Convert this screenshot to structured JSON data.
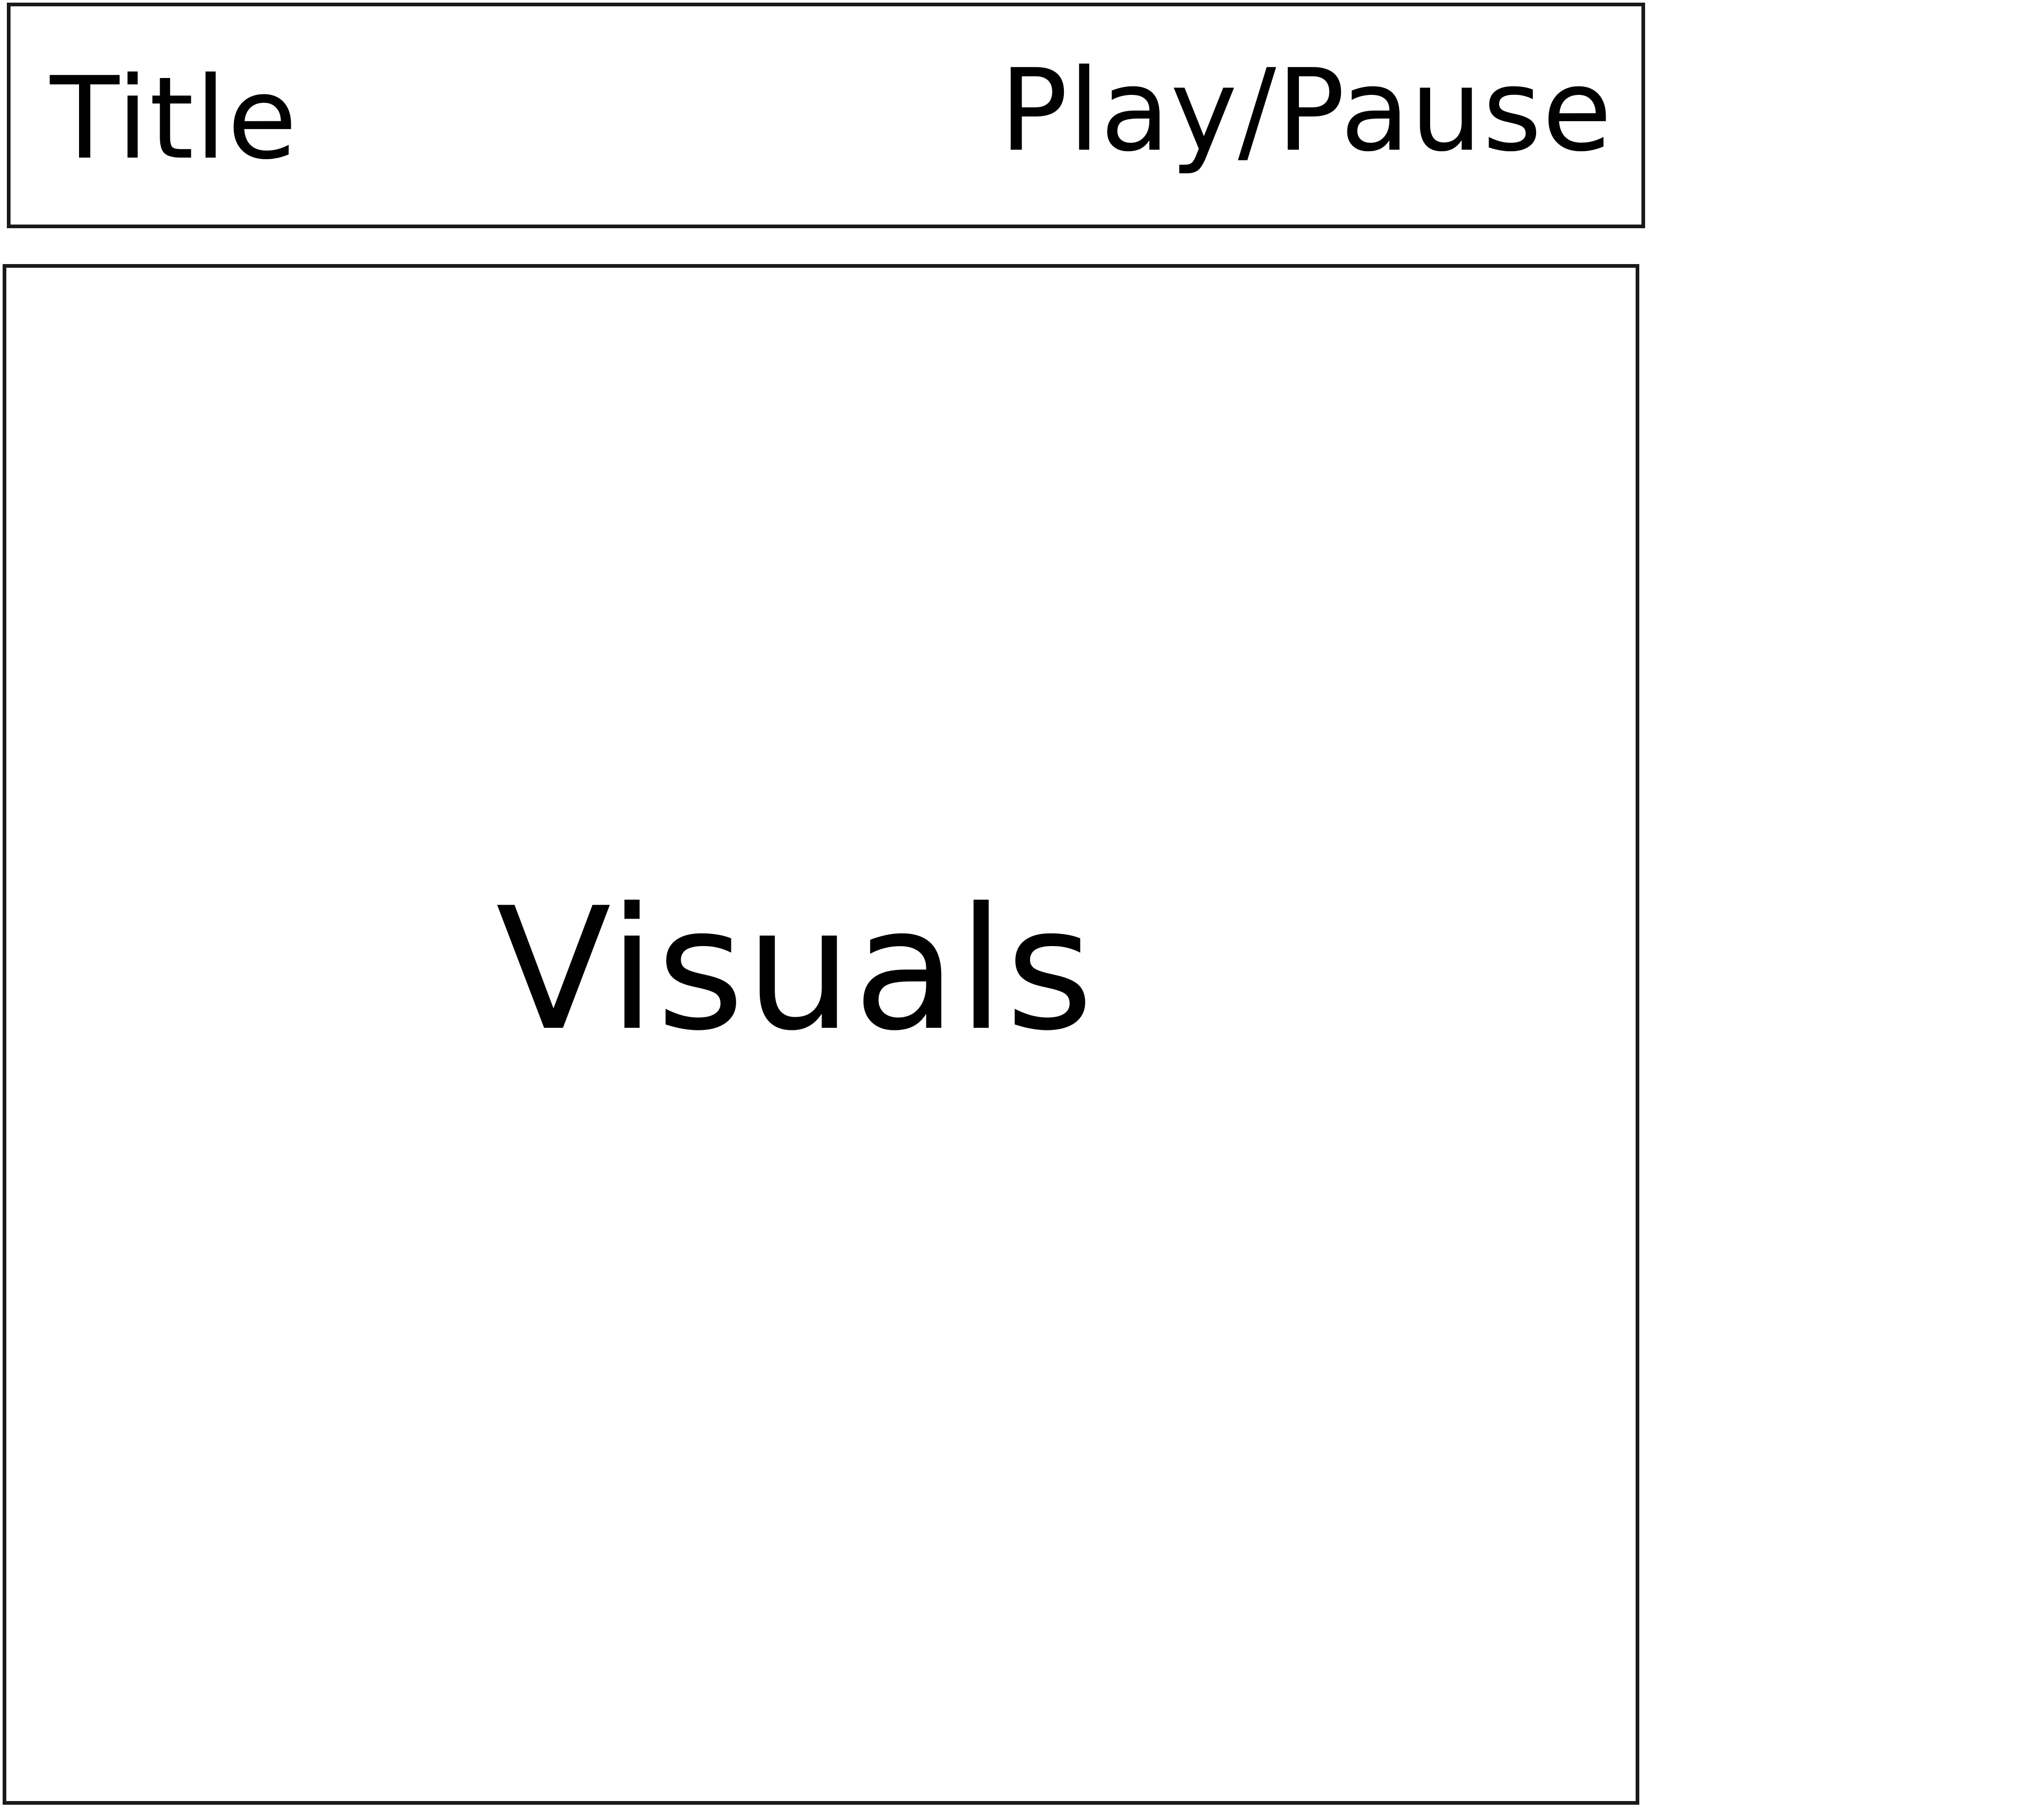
{
  "header": {
    "title": "Title",
    "play_pause_label": "Play/Pause"
  },
  "main": {
    "visuals_label": "Visuals"
  }
}
